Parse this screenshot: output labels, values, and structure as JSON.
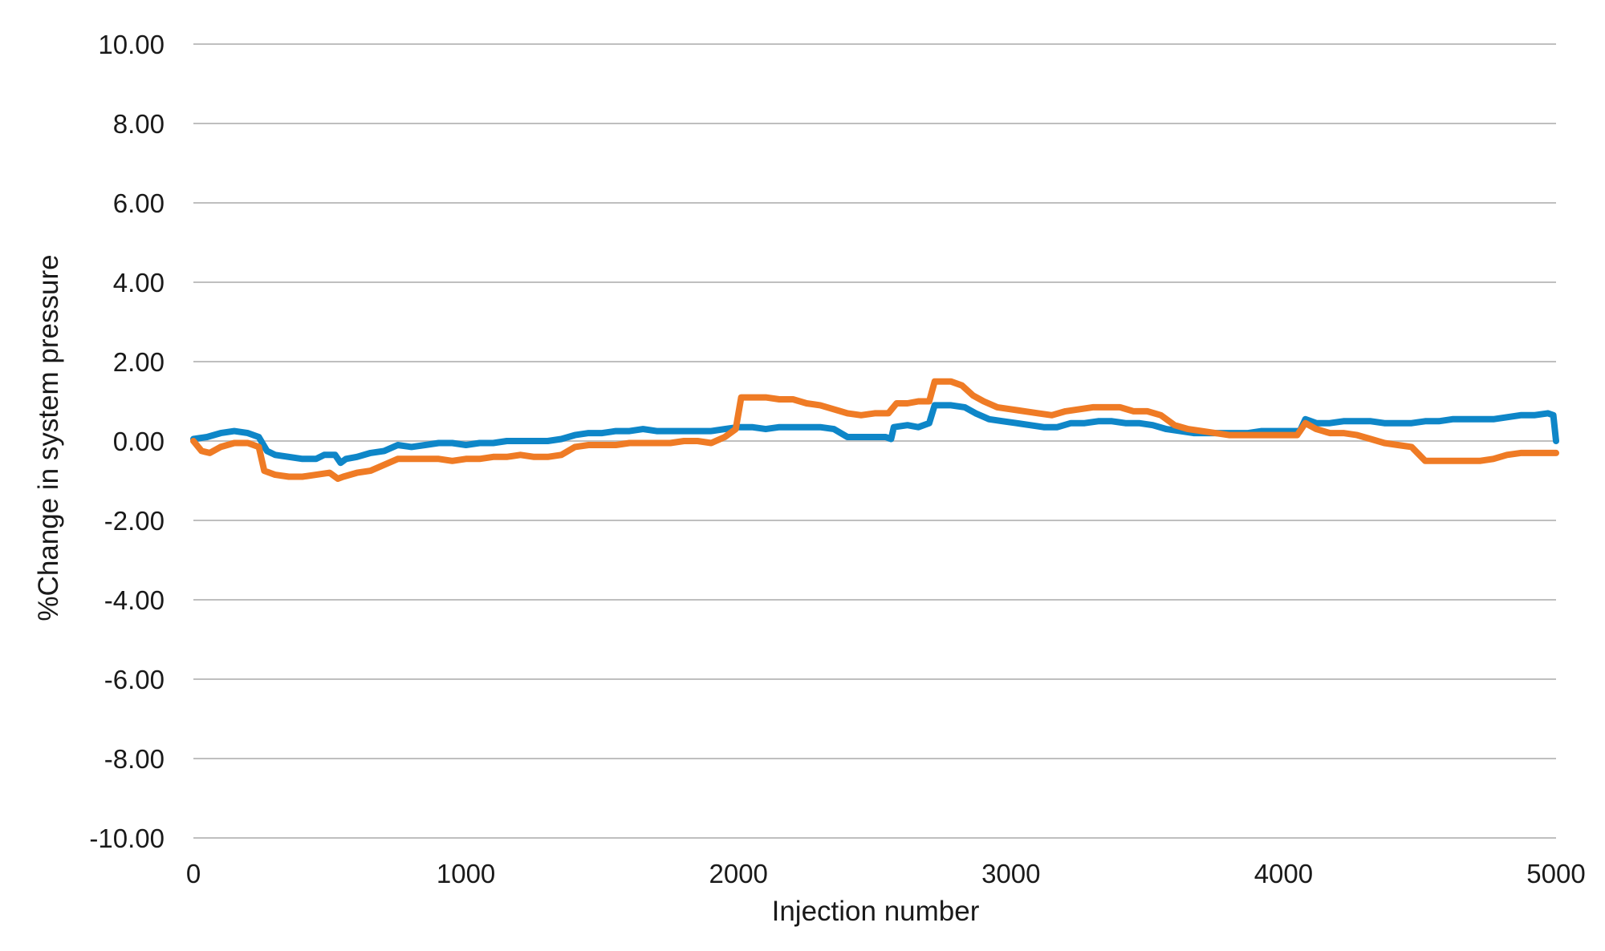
{
  "chart_data": {
    "type": "line",
    "title": "",
    "xlabel": "Injection number",
    "ylabel": "%Change in system pressure",
    "xlim": [
      0,
      5000
    ],
    "ylim": [
      -10,
      10
    ],
    "x_ticks": [
      "0",
      "1000",
      "2000",
      "3000",
      "4000",
      "5000"
    ],
    "x_tick_values": [
      0,
      1000,
      2000,
      3000,
      4000,
      5000
    ],
    "y_ticks": [
      "10.00",
      "8.00",
      "6.00",
      "4.00",
      "2.00",
      "0.00",
      "-2.00",
      "-4.00",
      "-6.00",
      "-8.00",
      "-10.00"
    ],
    "y_tick_values": [
      10,
      8,
      6,
      4,
      2,
      0,
      -2,
      -4,
      -6,
      -8,
      -10
    ],
    "grid": "horizontal",
    "legend": "none",
    "series": [
      {
        "color": "#0e86c8",
        "points": [
          [
            0,
            0.05
          ],
          [
            50,
            0.1
          ],
          [
            100,
            0.2
          ],
          [
            150,
            0.25
          ],
          [
            200,
            0.2
          ],
          [
            240,
            0.1
          ],
          [
            270,
            -0.25
          ],
          [
            300,
            -0.35
          ],
          [
            350,
            -0.4
          ],
          [
            400,
            -0.45
          ],
          [
            450,
            -0.45
          ],
          [
            480,
            -0.35
          ],
          [
            520,
            -0.35
          ],
          [
            540,
            -0.55
          ],
          [
            560,
            -0.45
          ],
          [
            600,
            -0.4
          ],
          [
            650,
            -0.3
          ],
          [
            700,
            -0.25
          ],
          [
            750,
            -0.1
          ],
          [
            800,
            -0.15
          ],
          [
            850,
            -0.1
          ],
          [
            900,
            -0.05
          ],
          [
            950,
            -0.05
          ],
          [
            1000,
            -0.1
          ],
          [
            1050,
            -0.05
          ],
          [
            1100,
            -0.05
          ],
          [
            1150,
            0.0
          ],
          [
            1200,
            0.0
          ],
          [
            1250,
            0.0
          ],
          [
            1300,
            0.0
          ],
          [
            1350,
            0.05
          ],
          [
            1400,
            0.15
          ],
          [
            1450,
            0.2
          ],
          [
            1500,
            0.2
          ],
          [
            1550,
            0.25
          ],
          [
            1600,
            0.25
          ],
          [
            1650,
            0.3
          ],
          [
            1700,
            0.25
          ],
          [
            1750,
            0.25
          ],
          [
            1800,
            0.25
          ],
          [
            1850,
            0.25
          ],
          [
            1900,
            0.25
          ],
          [
            1950,
            0.3
          ],
          [
            2000,
            0.35
          ],
          [
            2050,
            0.35
          ],
          [
            2100,
            0.3
          ],
          [
            2150,
            0.35
          ],
          [
            2200,
            0.35
          ],
          [
            2250,
            0.35
          ],
          [
            2300,
            0.35
          ],
          [
            2350,
            0.3
          ],
          [
            2400,
            0.1
          ],
          [
            2450,
            0.1
          ],
          [
            2500,
            0.1
          ],
          [
            2540,
            0.1
          ],
          [
            2560,
            0.05
          ],
          [
            2570,
            0.35
          ],
          [
            2620,
            0.4
          ],
          [
            2660,
            0.35
          ],
          [
            2700,
            0.45
          ],
          [
            2720,
            0.9
          ],
          [
            2780,
            0.9
          ],
          [
            2830,
            0.85
          ],
          [
            2870,
            0.7
          ],
          [
            2920,
            0.55
          ],
          [
            2970,
            0.5
          ],
          [
            3020,
            0.45
          ],
          [
            3070,
            0.4
          ],
          [
            3120,
            0.35
          ],
          [
            3170,
            0.35
          ],
          [
            3220,
            0.45
          ],
          [
            3270,
            0.45
          ],
          [
            3320,
            0.5
          ],
          [
            3370,
            0.5
          ],
          [
            3420,
            0.45
          ],
          [
            3470,
            0.45
          ],
          [
            3520,
            0.4
          ],
          [
            3570,
            0.3
          ],
          [
            3620,
            0.25
          ],
          [
            3670,
            0.2
          ],
          [
            3720,
            0.2
          ],
          [
            3770,
            0.2
          ],
          [
            3820,
            0.2
          ],
          [
            3870,
            0.2
          ],
          [
            3920,
            0.25
          ],
          [
            3970,
            0.25
          ],
          [
            4020,
            0.25
          ],
          [
            4060,
            0.25
          ],
          [
            4080,
            0.55
          ],
          [
            4120,
            0.45
          ],
          [
            4170,
            0.45
          ],
          [
            4220,
            0.5
          ],
          [
            4270,
            0.5
          ],
          [
            4320,
            0.5
          ],
          [
            4370,
            0.45
          ],
          [
            4420,
            0.45
          ],
          [
            4470,
            0.45
          ],
          [
            4520,
            0.5
          ],
          [
            4570,
            0.5
          ],
          [
            4620,
            0.55
          ],
          [
            4670,
            0.55
          ],
          [
            4720,
            0.55
          ],
          [
            4770,
            0.55
          ],
          [
            4820,
            0.6
          ],
          [
            4870,
            0.65
          ],
          [
            4920,
            0.65
          ],
          [
            4970,
            0.7
          ],
          [
            4990,
            0.65
          ],
          [
            5000,
            0.0
          ]
        ]
      },
      {
        "color": "#ef7b25",
        "points": [
          [
            0,
            0.0
          ],
          [
            30,
            -0.25
          ],
          [
            60,
            -0.3
          ],
          [
            100,
            -0.15
          ],
          [
            150,
            -0.05
          ],
          [
            200,
            -0.05
          ],
          [
            240,
            -0.15
          ],
          [
            260,
            -0.75
          ],
          [
            300,
            -0.85
          ],
          [
            350,
            -0.9
          ],
          [
            400,
            -0.9
          ],
          [
            450,
            -0.85
          ],
          [
            500,
            -0.8
          ],
          [
            530,
            -0.95
          ],
          [
            550,
            -0.9
          ],
          [
            600,
            -0.8
          ],
          [
            650,
            -0.75
          ],
          [
            700,
            -0.6
          ],
          [
            750,
            -0.45
          ],
          [
            800,
            -0.45
          ],
          [
            850,
            -0.45
          ],
          [
            900,
            -0.45
          ],
          [
            950,
            -0.5
          ],
          [
            1000,
            -0.45
          ],
          [
            1050,
            -0.45
          ],
          [
            1100,
            -0.4
          ],
          [
            1150,
            -0.4
          ],
          [
            1200,
            -0.35
          ],
          [
            1250,
            -0.4
          ],
          [
            1300,
            -0.4
          ],
          [
            1350,
            -0.35
          ],
          [
            1400,
            -0.15
          ],
          [
            1450,
            -0.1
          ],
          [
            1500,
            -0.1
          ],
          [
            1550,
            -0.1
          ],
          [
            1600,
            -0.05
          ],
          [
            1650,
            -0.05
          ],
          [
            1700,
            -0.05
          ],
          [
            1750,
            -0.05
          ],
          [
            1800,
            0.0
          ],
          [
            1850,
            0.0
          ],
          [
            1900,
            -0.05
          ],
          [
            1950,
            0.1
          ],
          [
            1990,
            0.3
          ],
          [
            2010,
            1.1
          ],
          [
            2050,
            1.1
          ],
          [
            2100,
            1.1
          ],
          [
            2150,
            1.05
          ],
          [
            2200,
            1.05
          ],
          [
            2250,
            0.95
          ],
          [
            2300,
            0.9
          ],
          [
            2350,
            0.8
          ],
          [
            2400,
            0.7
          ],
          [
            2450,
            0.65
          ],
          [
            2500,
            0.7
          ],
          [
            2550,
            0.7
          ],
          [
            2580,
            0.95
          ],
          [
            2620,
            0.95
          ],
          [
            2660,
            1.0
          ],
          [
            2700,
            1.0
          ],
          [
            2720,
            1.5
          ],
          [
            2780,
            1.5
          ],
          [
            2820,
            1.4
          ],
          [
            2860,
            1.15
          ],
          [
            2900,
            1.0
          ],
          [
            2950,
            0.85
          ],
          [
            3000,
            0.8
          ],
          [
            3050,
            0.75
          ],
          [
            3100,
            0.7
          ],
          [
            3150,
            0.65
          ],
          [
            3200,
            0.75
          ],
          [
            3250,
            0.8
          ],
          [
            3300,
            0.85
          ],
          [
            3350,
            0.85
          ],
          [
            3400,
            0.85
          ],
          [
            3450,
            0.75
          ],
          [
            3500,
            0.75
          ],
          [
            3550,
            0.65
          ],
          [
            3600,
            0.4
          ],
          [
            3650,
            0.3
          ],
          [
            3700,
            0.25
          ],
          [
            3750,
            0.2
          ],
          [
            3800,
            0.15
          ],
          [
            3850,
            0.15
          ],
          [
            3900,
            0.15
          ],
          [
            3950,
            0.15
          ],
          [
            4000,
            0.15
          ],
          [
            4050,
            0.15
          ],
          [
            4080,
            0.45
          ],
          [
            4120,
            0.3
          ],
          [
            4170,
            0.2
          ],
          [
            4220,
            0.2
          ],
          [
            4270,
            0.15
          ],
          [
            4320,
            0.05
          ],
          [
            4370,
            -0.05
          ],
          [
            4420,
            -0.1
          ],
          [
            4470,
            -0.15
          ],
          [
            4520,
            -0.5
          ],
          [
            4570,
            -0.5
          ],
          [
            4620,
            -0.5
          ],
          [
            4670,
            -0.5
          ],
          [
            4720,
            -0.5
          ],
          [
            4770,
            -0.45
          ],
          [
            4820,
            -0.35
          ],
          [
            4870,
            -0.3
          ],
          [
            4920,
            -0.3
          ],
          [
            4970,
            -0.3
          ],
          [
            5000,
            -0.3
          ]
        ]
      }
    ]
  }
}
